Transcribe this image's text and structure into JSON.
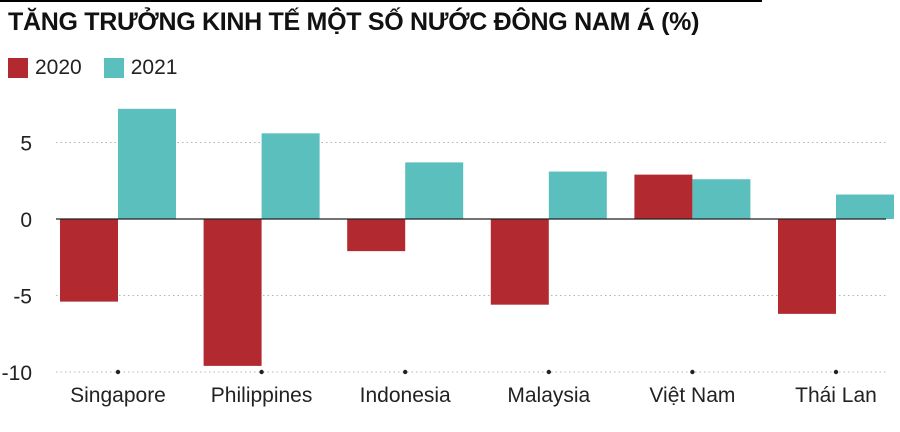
{
  "chart_data": {
    "type": "bar",
    "title": "TĂNG TRƯỞNG KINH TẾ MỘT SỐ NƯỚC ĐÔNG NAM Á (%)",
    "categories": [
      "Singapore",
      "Philippines",
      "Indonesia",
      "Malaysia",
      "Việt Nam",
      "Thái Lan"
    ],
    "series": [
      {
        "name": "2020",
        "color": "#b22a2f",
        "values": [
          -5.4,
          -9.6,
          -2.1,
          -5.6,
          2.9,
          -6.2
        ]
      },
      {
        "name": "2021",
        "color": "#5bbfbe",
        "values": [
          7.2,
          5.6,
          3.7,
          3.1,
          2.6,
          1.6
        ]
      }
    ],
    "ylim": [
      -10,
      7.5
    ],
    "yticks": [
      -10,
      -5,
      0,
      5
    ],
    "ytick_labels": [
      "-10",
      "-5",
      "0",
      "5"
    ],
    "grid": true,
    "legend_position": "top-left"
  }
}
